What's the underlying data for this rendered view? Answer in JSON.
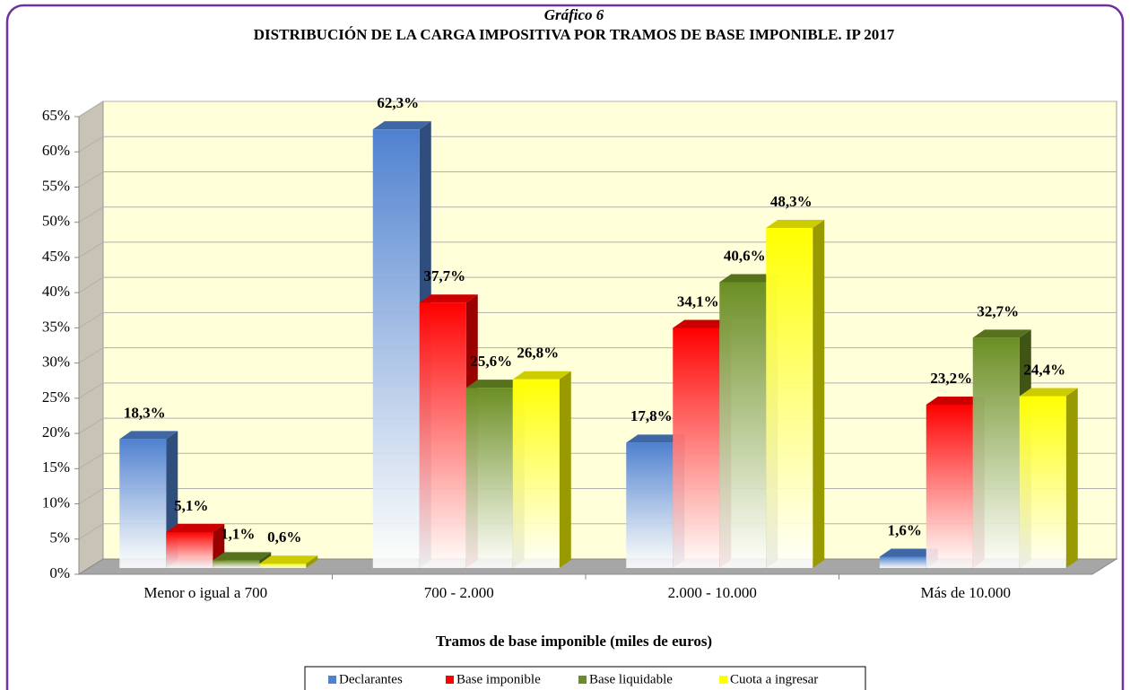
{
  "chart_data": {
    "type": "bar3d",
    "title": "Gráfico 6",
    "subtitle": "DISTRIBUCIÓN DE LA CARGA IMPOSITIVA POR TRAMOS DE BASE IMPONIBLE. IP 2017",
    "x_label": "Tramos de base imponible (miles de euros)",
    "categories": [
      "Menor o igual a 700",
      "700 - 2.000",
      "2.000 - 10.000",
      "Más de 10.000"
    ],
    "series": [
      {
        "name": "Declarantes",
        "color": "#4f81d0",
        "values": [
          18.3,
          62.3,
          17.8,
          1.6
        ],
        "value_labels": [
          "18,3%",
          "62,3%",
          "17,8%",
          "1,6%"
        ]
      },
      {
        "name": "Base imponible",
        "color": "#ff0000",
        "values": [
          5.1,
          37.7,
          34.1,
          23.2
        ],
        "value_labels": [
          "5,1%",
          "37,7%",
          "34,1%",
          "23,2%"
        ]
      },
      {
        "name": "Base liquidable",
        "color": "#6b8e23",
        "values": [
          1.1,
          25.6,
          40.6,
          32.7
        ],
        "value_labels": [
          "1,1%",
          "25,6%",
          "40,6%",
          "32,7%"
        ]
      },
      {
        "name": "Cuota a ingresar",
        "color": "#ffff00",
        "values": [
          0.6,
          26.8,
          48.3,
          24.4
        ],
        "value_labels": [
          "0,6%",
          "26,8%",
          "48,3%",
          "24,4%"
        ]
      }
    ],
    "ylim": [
      0,
      65
    ],
    "yticks": [
      {
        "value": 0,
        "label": "0%"
      },
      {
        "value": 5,
        "label": "5%"
      },
      {
        "value": 10,
        "label": "10%"
      },
      {
        "value": 15,
        "label": "15%"
      },
      {
        "value": 20,
        "label": "20%"
      },
      {
        "value": 25,
        "label": "25%"
      },
      {
        "value": 30,
        "label": "30%"
      },
      {
        "value": 35,
        "label": "35%"
      },
      {
        "value": 40,
        "label": "40%"
      },
      {
        "value": 45,
        "label": "45%"
      },
      {
        "value": 50,
        "label": "50%"
      },
      {
        "value": 55,
        "label": "55%"
      },
      {
        "value": 60,
        "label": "60%"
      },
      {
        "value": 65,
        "label": "65%"
      }
    ],
    "grid": true,
    "legend": "bottom"
  }
}
